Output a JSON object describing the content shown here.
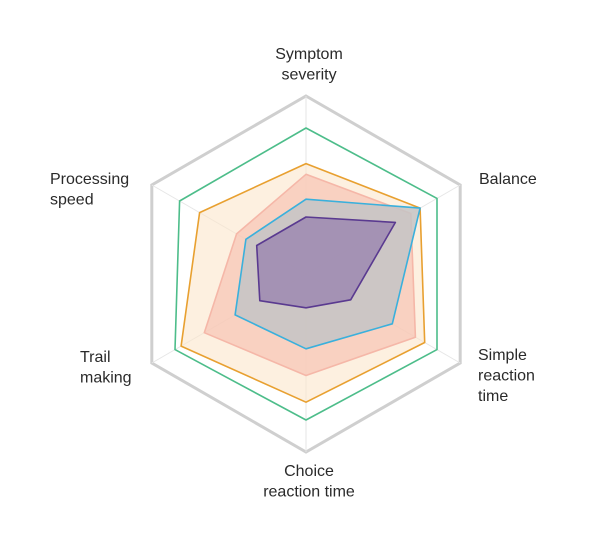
{
  "chart_data": {
    "type": "radar",
    "title": "",
    "axes": [
      {
        "key": "symptom_severity",
        "label_lines": [
          "Symptom",
          "severity"
        ]
      },
      {
        "key": "balance",
        "label_lines": [
          "Balance"
        ]
      },
      {
        "key": "simple_reaction_time",
        "label_lines": [
          "Simple",
          "reaction",
          "time"
        ]
      },
      {
        "key": "choice_reaction_time",
        "label_lines": [
          "Choice",
          "reaction time"
        ]
      },
      {
        "key": "trail_making",
        "label_lines": [
          "Trail",
          "making"
        ]
      },
      {
        "key": "processing_speed",
        "label_lines": [
          "Processing",
          "speed"
        ]
      }
    ],
    "range": [
      0,
      1
    ],
    "grid_levels": [
      1,
      0.85
    ],
    "series": [
      {
        "values": [
          0.82,
          0.85,
          0.85,
          0.82,
          0.85,
          0.82
        ],
        "stroke": "#4dbd8a",
        "fill": "none",
        "fill_opacity": 0
      },
      {
        "values": [
          0.62,
          0.74,
          0.77,
          0.72,
          0.81,
          0.69
        ],
        "stroke": "#e8a030",
        "fill": "#fbe6cc",
        "fill_opacity": 0.6
      },
      {
        "values": [
          0.56,
          0.68,
          0.71,
          0.57,
          0.66,
          0.45
        ],
        "stroke": "#f5b7a8",
        "fill": "#f6c3b4",
        "fill_opacity": 0.7
      },
      {
        "values": [
          0.42,
          0.74,
          0.56,
          0.42,
          0.46,
          0.39
        ],
        "stroke": "#3ab0dc",
        "fill": "#c4c4c6",
        "fill_opacity": 0.85
      },
      {
        "values": [
          0.32,
          0.58,
          0.29,
          0.19,
          0.3,
          0.32
        ],
        "stroke": "#5a3a90",
        "fill": "#9c88b0",
        "fill_opacity": 0.85
      }
    ],
    "colors": {
      "outer_frame": "#cfcfcf",
      "spokes": "#e6e6e6"
    }
  }
}
